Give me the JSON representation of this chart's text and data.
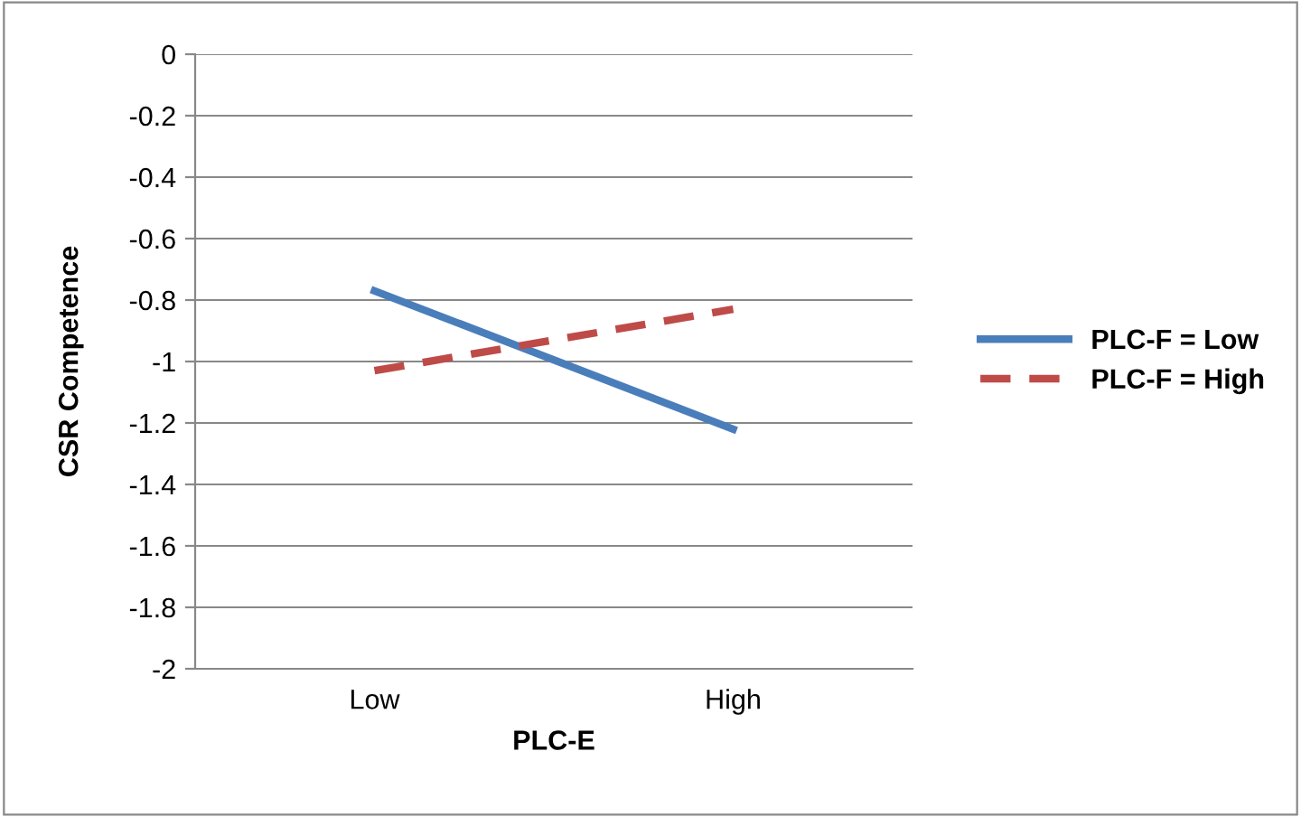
{
  "chart_data": {
    "type": "line",
    "xlabel": "PLC-E",
    "ylabel": "CSR Competence",
    "categories": [
      "Low",
      "High"
    ],
    "series": [
      {
        "name": "PLC-F = Low",
        "color": "#4a7ebb",
        "values": [
          -0.77,
          -1.22
        ],
        "line_style": "solid"
      },
      {
        "name": "PLC-F = High",
        "color": "#be4b48",
        "values": [
          -1.03,
          -0.83
        ],
        "line_style": "dashed"
      }
    ],
    "ylim": [
      -2,
      0
    ],
    "yticks": [
      -2,
      -1.8,
      -1.6,
      -1.4,
      -1.2,
      -1,
      -0.8,
      -0.6,
      -0.4,
      -0.2,
      0
    ],
    "grid": "y",
    "legend": "right",
    "marker": "none"
  }
}
